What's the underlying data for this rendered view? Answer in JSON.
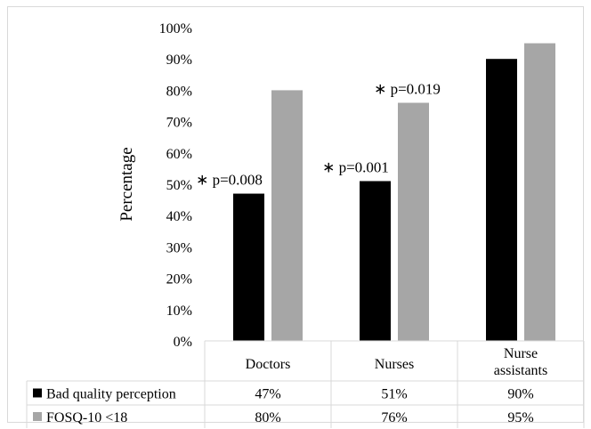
{
  "chart_data": {
    "type": "bar",
    "ylabel": "Percentage",
    "xlabel": "",
    "ylim": [
      0,
      100
    ],
    "yticks": [
      "0%",
      "10%",
      "20%",
      "30%",
      "40%",
      "50%",
      "60%",
      "70%",
      "80%",
      "90%",
      "100%"
    ],
    "categories": [
      "Doctors",
      "Nurses",
      "Nurse assistants"
    ],
    "category_lines": [
      [
        "Doctors"
      ],
      [
        "Nurses"
      ],
      [
        "Nurse",
        "assistants"
      ]
    ],
    "series": [
      {
        "name": "Bad quality perception",
        "values": [
          47,
          51,
          90
        ],
        "labels": [
          "47%",
          "51%",
          "90%"
        ],
        "color": "#000000"
      },
      {
        "name": "FOSQ-10 <18",
        "values": [
          80,
          76,
          95
        ],
        "labels": [
          "80%",
          "76%",
          "95%"
        ],
        "color": "#a6a6a6"
      }
    ],
    "annotations": [
      {
        "text": "∗ p=0.008",
        "category": "Doctors",
        "above_value": 47
      },
      {
        "text": "∗ p=0.001",
        "category": "Nurses",
        "above_value": 51
      },
      {
        "text": "∗ p=0.019",
        "category": "Nurses",
        "above_value": 76
      }
    ],
    "grid": false,
    "legend": "data-table-below"
  }
}
